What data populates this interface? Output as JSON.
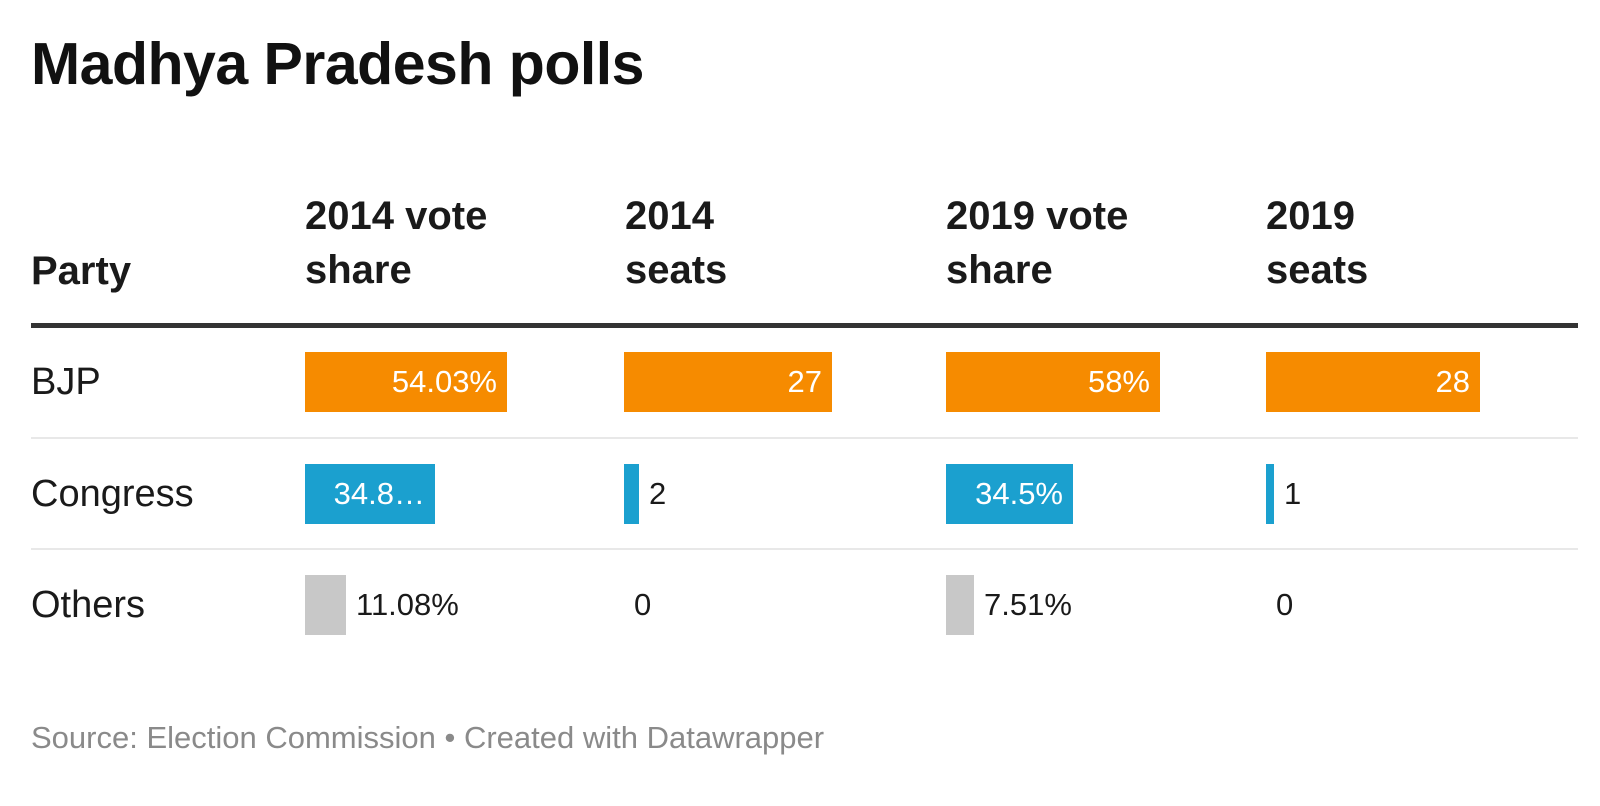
{
  "chart_data": {
    "type": "table",
    "title": "Madhya Pradesh polls",
    "columns": [
      "Party",
      "2014 vote share",
      "2014 seats",
      "2019 vote share",
      "2019 seats"
    ],
    "column_headers": {
      "party": [
        "Party"
      ],
      "vote2014": [
        "2014 vote",
        "share"
      ],
      "seats2014": [
        "2014",
        "seats"
      ],
      "vote2019": [
        "2019 vote",
        "share"
      ],
      "seats2019": [
        "2019",
        "seats"
      ]
    },
    "rows": [
      {
        "party": "BJP",
        "color": "#f68b00",
        "vote2014": 54.03,
        "vote2014_label": "54.03%",
        "seats2014": 27,
        "seats2014_label": "27",
        "vote2019": 58,
        "vote2019_label": "58%",
        "seats2019": 28,
        "seats2019_label": "28"
      },
      {
        "party": "Congress",
        "color": "#1ba0cf",
        "vote2014": 34.8,
        "vote2014_label": "34.8…",
        "seats2014": 2,
        "seats2014_label": "2",
        "vote2019": 34.5,
        "vote2019_label": "34.5%",
        "seats2019": 1,
        "seats2019_label": "1"
      },
      {
        "party": "Others",
        "color": "#c8c8c8",
        "vote2014": 11.08,
        "vote2014_label": "11.08%",
        "seats2014": 0,
        "seats2014_label": "0",
        "vote2019": 7.51,
        "vote2019_label": "7.51%",
        "seats2019": 0,
        "seats2019_label": "0"
      }
    ],
    "footer": "Source: Election Commission • Created with Datawrapper"
  }
}
